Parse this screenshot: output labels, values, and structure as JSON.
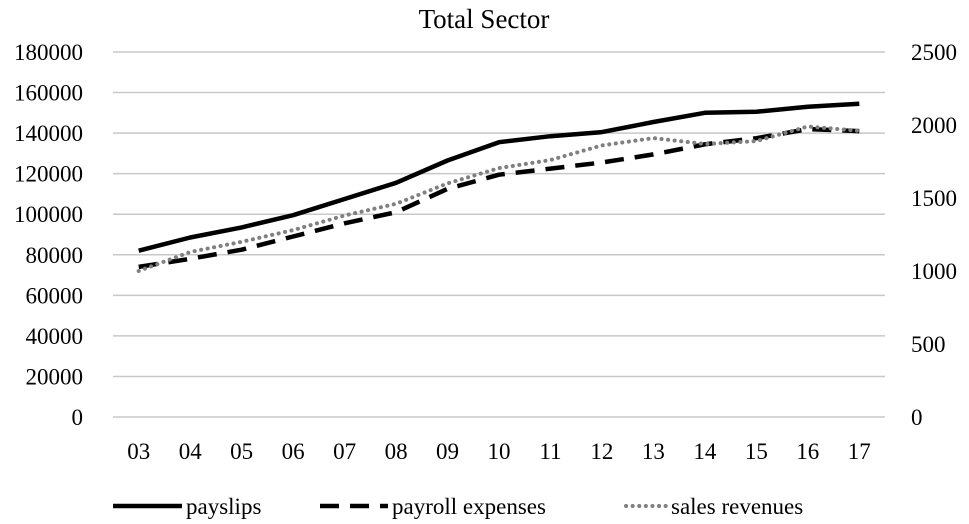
{
  "chart_data": {
    "type": "line",
    "title": "Total Sector",
    "categories": [
      "03",
      "04",
      "05",
      "06",
      "07",
      "08",
      "09",
      "10",
      "11",
      "12",
      "13",
      "14",
      "15",
      "16",
      "17"
    ],
    "y_left": {
      "min": 0,
      "max": 180000,
      "ticks": [
        0,
        20000,
        40000,
        60000,
        80000,
        100000,
        120000,
        140000,
        160000,
        180000
      ]
    },
    "y_right": {
      "min": 0,
      "max": 2500,
      "ticks": [
        0,
        500,
        1000,
        1500,
        2000,
        2500
      ]
    },
    "grid": true,
    "legend_position": "bottom",
    "series": [
      {
        "name": "payslips",
        "axis": "left",
        "style": "solid",
        "color": "#000000",
        "values": [
          82000,
          88500,
          93500,
          99500,
          107500,
          115500,
          126500,
          135500,
          138500,
          140500,
          145500,
          150000,
          150500,
          153000,
          154500
        ]
      },
      {
        "name": "payroll expenses",
        "axis": "left",
        "style": "dashed",
        "color": "#000000",
        "values": [
          74000,
          78000,
          82500,
          89000,
          95500,
          101000,
          112500,
          119500,
          122500,
          125500,
          129500,
          134500,
          137500,
          142000,
          141000
        ]
      },
      {
        "name": "sales revenues",
        "axis": "right",
        "style": "dotted",
        "color": "#808080",
        "values": [
          1000,
          1130,
          1200,
          1280,
          1380,
          1460,
          1600,
          1705,
          1760,
          1860,
          1910,
          1870,
          1890,
          1990,
          1960
        ]
      }
    ]
  }
}
